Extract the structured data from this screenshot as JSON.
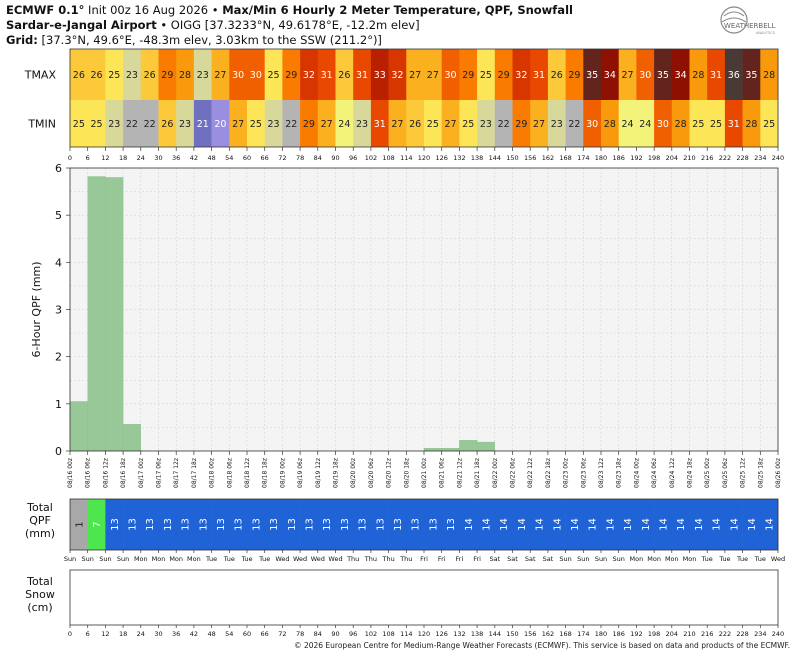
{
  "header": {
    "line1_model": "ECMWF 0.1°",
    "line1_rest": " Init 00z 16 Aug 2026 • ",
    "line1_bold": "Max/Min 6 Hourly 2 Meter Temperature,  QPF,  Snowfall",
    "line2_bold": "Sardar-e-Jangal Airport",
    "line2_rest": " • OIGG [37.3233°N, 49.6178°E, -12.2m elev]",
    "line3_bold": "Grid:",
    "line3_rest": " [37.3°N, 49.6°E, -48.3m elev, 3.03km to the SSW (211.2°)]",
    "logo_text": "WEATHERBELL",
    "logo_sub": "ANALYTICS"
  },
  "footer": {
    "credit": "© 2026 European Centre for Medium-Range Weather Forecasts (ECMWF). This service is based on data and products of the ECMWF."
  },
  "chart_data": [
    {
      "type": "table",
      "name": "temperature-table",
      "rows": [
        "TMAX",
        "TMIN"
      ],
      "tmax": [
        26,
        26,
        25,
        23,
        26,
        29,
        28,
        23,
        27,
        30,
        30,
        25,
        29,
        32,
        31,
        26,
        31,
        33,
        32,
        27,
        27,
        30,
        29,
        25,
        29,
        32,
        31,
        26,
        29,
        35,
        34,
        27,
        30,
        35,
        34,
        28,
        31,
        36,
        35,
        28
      ],
      "tmin": [
        25,
        25,
        23,
        22,
        22,
        26,
        23,
        21,
        20,
        27,
        25,
        23,
        22,
        29,
        27,
        24,
        23,
        31,
        27,
        26,
        25,
        27,
        25,
        23,
        22,
        29,
        27,
        23,
        22,
        30,
        28,
        24,
        24,
        30,
        28,
        25,
        25,
        31,
        28,
        25
      ],
      "x_ticks": [
        "0",
        "6",
        "12",
        "18",
        "24",
        "30",
        "36",
        "42",
        "48",
        "54",
        "60",
        "66",
        "72",
        "78",
        "84",
        "90",
        "96",
        "102",
        "108",
        "114",
        "120",
        "126",
        "132",
        "138",
        "144",
        "150",
        "156",
        "162",
        "168",
        "174",
        "180",
        "186",
        "192",
        "198",
        "204",
        "210",
        "216",
        "222",
        "228",
        "234",
        "240"
      ]
    },
    {
      "type": "bar",
      "name": "qpf-6-hour",
      "ylabel": "6-Hour QPF (mm)",
      "ylim": [
        0,
        6
      ],
      "yticks": [
        "0",
        "1",
        "2",
        "3",
        "4",
        "5",
        "6"
      ],
      "grid": true,
      "values": [
        1.05,
        5.82,
        5.8,
        0.57,
        0,
        0,
        0,
        0,
        0,
        0,
        0,
        0,
        0,
        0,
        0,
        0,
        0,
        0,
        0,
        0,
        0.06,
        0.06,
        0.23,
        0.19,
        0,
        0,
        0,
        0,
        0,
        0,
        0,
        0,
        0,
        0,
        0,
        0,
        0,
        0,
        0,
        0
      ],
      "x_ticks": [
        "08/16 00z",
        "08/16 06z",
        "08/16 12z",
        "08/16 18z",
        "08/17 00z",
        "08/17 06z",
        "08/17 12z",
        "08/17 18z",
        "08/18 00z",
        "08/18 06z",
        "08/18 12z",
        "08/18 18z",
        "08/19 00z",
        "08/19 06z",
        "08/19 12z",
        "08/19 18z",
        "08/20 00z",
        "08/20 06z",
        "08/20 12z",
        "08/20 18z",
        "08/21 00z",
        "08/21 06z",
        "08/21 12z",
        "08/21 18z",
        "08/22 00z",
        "08/22 06z",
        "08/22 12z",
        "08/22 18z",
        "08/23 00z",
        "08/23 06z",
        "08/23 12z",
        "08/23 18z",
        "08/24 00z",
        "08/24 06z",
        "08/24 12z",
        "08/24 18z",
        "08/25 00z",
        "08/25 06z",
        "08/25 12z",
        "08/25 18z",
        "08/26 00z"
      ],
      "bar_color": "#98c898"
    },
    {
      "type": "table",
      "name": "total-qpf",
      "label_lines": [
        "Total",
        "QPF",
        "(mm)"
      ],
      "values": [
        1,
        7,
        13,
        13,
        13,
        13,
        13,
        13,
        13,
        13,
        13,
        13,
        13,
        13,
        13,
        13,
        13,
        13,
        13,
        13,
        13,
        13,
        14,
        14,
        14,
        14,
        14,
        14,
        14,
        14,
        14,
        14,
        14,
        14,
        14,
        14,
        14,
        14,
        14,
        14
      ],
      "colors": {
        "1": "#a8a8a8",
        "7": "#4ee64e",
        "13": "#1f63d6",
        "14": "#1f63d6"
      }
    },
    {
      "type": "table",
      "name": "total-snow",
      "label_lines": [
        "Total",
        "Snow",
        "(cm)"
      ],
      "values": [],
      "x_ticks": [
        "0",
        "6",
        "12",
        "18",
        "24",
        "30",
        "36",
        "42",
        "48",
        "54",
        "60",
        "66",
        "72",
        "78",
        "84",
        "90",
        "96",
        "102",
        "108",
        "114",
        "120",
        "126",
        "132",
        "138",
        "144",
        "150",
        "156",
        "162",
        "168",
        "174",
        "180",
        "186",
        "192",
        "198",
        "204",
        "210",
        "216",
        "222",
        "228",
        "234",
        "240"
      ]
    }
  ],
  "day_labels": [
    "Sun",
    "Sun",
    "Sun",
    "Sun",
    "Mon",
    "Mon",
    "Mon",
    "Mon",
    "Tue",
    "Tue",
    "Tue",
    "Tue",
    "Wed",
    "Wed",
    "Wed",
    "Wed",
    "Thu",
    "Thu",
    "Thu",
    "Thu",
    "Fri",
    "Fri",
    "Fri",
    "Fri",
    "Sat",
    "Sat",
    "Sat",
    "Sat",
    "Sun",
    "Sun",
    "Sun",
    "Sun",
    "Mon",
    "Mon",
    "Mon",
    "Mon",
    "Tue",
    "Tue",
    "Tue",
    "Tue",
    "Wed"
  ]
}
